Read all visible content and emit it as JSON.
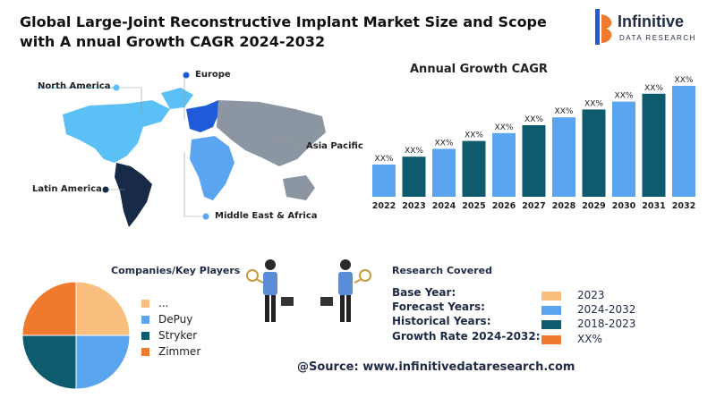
{
  "title": "Global Large-Joint Reconstructive Implant Market Size and Scope with A nnual Growth CAGR 2024-2032",
  "logo": {
    "name": "Infinitive",
    "subtitle": "DATA RESEARCH"
  },
  "regions": {
    "north_america": "North America",
    "europe": "Europe",
    "asia_pacific": "Asia Pacific",
    "latin_america": "Latin America",
    "mea": "Middle East & Africa"
  },
  "chart_data": {
    "type": "bar",
    "title": "Annual Growth CAGR",
    "categories": [
      "2022",
      "2023",
      "2024",
      "2025",
      "2026",
      "2027",
      "2028",
      "2029",
      "2030",
      "2031",
      "2032"
    ],
    "values": [
      1,
      2,
      3,
      4,
      5,
      6,
      7,
      8,
      9,
      10,
      11
    ],
    "data_labels": [
      "XX%",
      "XX%",
      "XX%",
      "XX%",
      "XX%",
      "XX%",
      "XX%",
      "XX%",
      "XX%",
      "XX%",
      "XX%"
    ],
    "bar_colors": [
      "#5ba4ef",
      "#0f5b6e",
      "#5ba4ef",
      "#0f5b6e",
      "#5ba4ef",
      "#0f5b6e",
      "#5ba4ef",
      "#0f5b6e",
      "#5ba4ef",
      "#0f5b6e",
      "#5ba4ef"
    ],
    "grid": false
  },
  "companies": {
    "title": "Companies/Key Players",
    "items": [
      {
        "label": "...",
        "color": "#f9bf7f"
      },
      {
        "label": "DePuy",
        "color": "#5ba4ef"
      },
      {
        "label": "Stryker",
        "color": "#0f5b6e"
      },
      {
        "label": "Zimmer",
        "color": "#ef7a2e"
      }
    ],
    "pie_slices": [
      {
        "value": 25,
        "color": "#f9bf7f"
      },
      {
        "value": 25,
        "color": "#5ba4ef"
      },
      {
        "value": 25,
        "color": "#0f5b6e"
      },
      {
        "value": 25,
        "color": "#ef7a2e"
      }
    ],
    "pie_center_color": "#172a48"
  },
  "research": {
    "title": "Research Covered",
    "rows": [
      {
        "label": "Base Year:",
        "value": "2023",
        "color": "#f9bf7f"
      },
      {
        "label": "Forecast Years:",
        "value": "2024-2032",
        "color": "#5ba4ef"
      },
      {
        "label": "Historical Years:",
        "value": "2018-2023",
        "color": "#0f5b6e"
      },
      {
        "label": "Growth Rate 2024-2032:",
        "value": "XX%",
        "color": "#ef7a2e"
      }
    ]
  },
  "source": "@Source: www.infinitivedataresearch.com"
}
